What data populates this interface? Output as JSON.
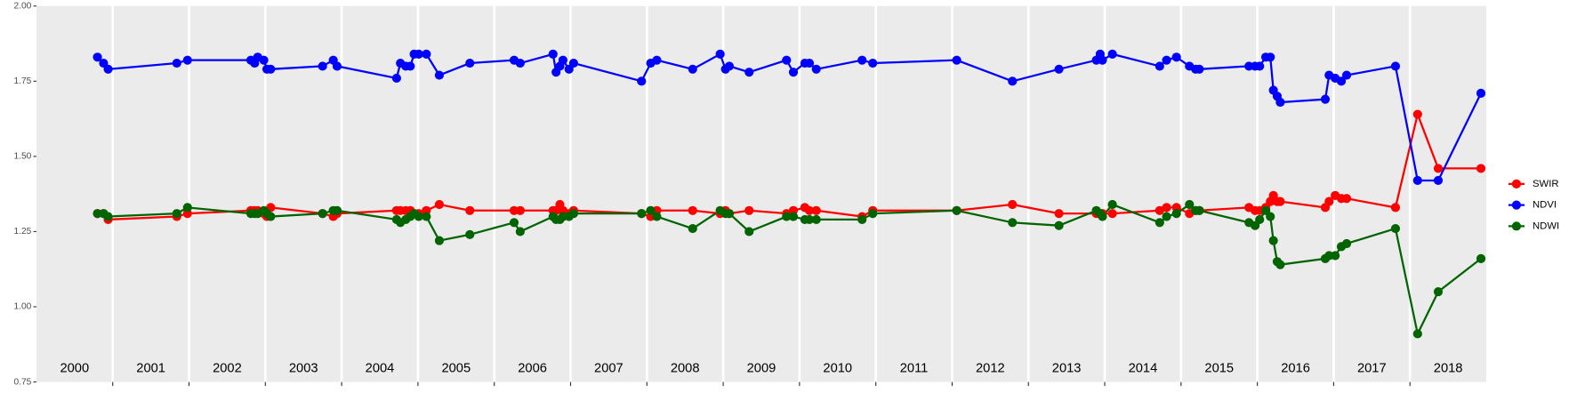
{
  "chart_data": {
    "type": "line",
    "x": [
      2000.8,
      2000.88,
      2000.94,
      2001.84,
      2001.98,
      2002.81,
      2002.86,
      2002.9,
      2002.98,
      2003.02,
      2003.07,
      2003.75,
      2003.89,
      2003.94,
      2004.72,
      2004.77,
      2004.84,
      2004.9,
      2004.95,
      2005.01,
      2005.11,
      2005.28,
      2005.68,
      2006.26,
      2006.34,
      2006.77,
      2006.81,
      2006.86,
      2006.9,
      2006.98,
      2007.04,
      2007.93,
      2008.05,
      2008.13,
      2008.6,
      2008.96,
      2009.03,
      2009.08,
      2009.34,
      2009.83,
      2009.92,
      2010.07,
      2010.13,
      2010.22,
      2010.82,
      2010.96,
      2012.06,
      2012.79,
      2013.4,
      2013.89,
      2013.94,
      2013.97,
      2014.1,
      2014.72,
      2014.81,
      2014.94,
      2015.11,
      2015.19,
      2015.24,
      2015.89,
      2015.97,
      2016.03,
      2016.11,
      2016.17,
      2016.21,
      2016.26,
      2016.3,
      2016.89,
      2016.94,
      2017.02,
      2017.1,
      2017.17,
      2017.81,
      2018.1,
      2018.37,
      2018.93
    ],
    "series": [
      {
        "name": "SWIR",
        "color": "#ff0000",
        "values": [
          1.31,
          1.31,
          1.29,
          1.3,
          1.31,
          1.32,
          1.32,
          1.32,
          1.31,
          1.3,
          1.33,
          1.31,
          1.3,
          1.31,
          1.32,
          1.32,
          1.32,
          1.32,
          1.31,
          1.31,
          1.32,
          1.34,
          1.32,
          1.32,
          1.32,
          1.32,
          1.32,
          1.34,
          1.32,
          1.31,
          1.32,
          1.31,
          1.3,
          1.32,
          1.32,
          1.31,
          1.32,
          1.31,
          1.32,
          1.31,
          1.32,
          1.33,
          1.32,
          1.32,
          1.3,
          1.32,
          1.32,
          1.34,
          1.31,
          1.31,
          1.31,
          1.31,
          1.31,
          1.32,
          1.33,
          1.33,
          1.31,
          1.32,
          1.32,
          1.33,
          1.32,
          1.32,
          1.33,
          1.35,
          1.37,
          1.35,
          1.35,
          1.33,
          1.35,
          1.37,
          1.36,
          1.36,
          1.33,
          1.64,
          1.46,
          1.46
        ]
      },
      {
        "name": "NDVI",
        "color": "#0000ff",
        "values": [
          1.83,
          1.81,
          1.79,
          1.81,
          1.82,
          1.82,
          1.81,
          1.83,
          1.82,
          1.79,
          1.79,
          1.8,
          1.82,
          1.8,
          1.76,
          1.81,
          1.8,
          1.8,
          1.84,
          1.84,
          1.84,
          1.77,
          1.81,
          1.82,
          1.81,
          1.84,
          1.78,
          1.8,
          1.82,
          1.79,
          1.81,
          1.75,
          1.81,
          1.82,
          1.79,
          1.84,
          1.79,
          1.8,
          1.78,
          1.82,
          1.78,
          1.81,
          1.81,
          1.79,
          1.82,
          1.81,
          1.82,
          1.75,
          1.79,
          1.82,
          1.84,
          1.82,
          1.84,
          1.8,
          1.82,
          1.83,
          1.8,
          1.79,
          1.79,
          1.8,
          1.8,
          1.8,
          1.83,
          1.83,
          1.72,
          1.7,
          1.68,
          1.69,
          1.77,
          1.76,
          1.75,
          1.77,
          1.8,
          1.42,
          1.42,
          1.71
        ]
      },
      {
        "name": "NDWI",
        "color": "#006400",
        "values": [
          1.31,
          1.31,
          1.3,
          1.31,
          1.33,
          1.31,
          1.31,
          1.31,
          1.32,
          1.31,
          1.3,
          1.31,
          1.32,
          1.32,
          1.29,
          1.28,
          1.29,
          1.3,
          1.31,
          1.3,
          1.3,
          1.22,
          1.24,
          1.28,
          1.25,
          1.3,
          1.29,
          1.29,
          1.3,
          1.3,
          1.31,
          1.31,
          1.32,
          1.3,
          1.26,
          1.32,
          1.31,
          1.31,
          1.25,
          1.3,
          1.3,
          1.29,
          1.29,
          1.29,
          1.29,
          1.31,
          1.32,
          1.28,
          1.27,
          1.32,
          1.31,
          1.3,
          1.34,
          1.28,
          1.3,
          1.31,
          1.34,
          1.32,
          1.32,
          1.28,
          1.27,
          1.29,
          1.32,
          1.3,
          1.22,
          1.15,
          1.14,
          1.16,
          1.17,
          1.17,
          1.2,
          1.21,
          1.26,
          0.91,
          1.05,
          1.16
        ]
      }
    ],
    "xlim": [
      2000,
      2019
    ],
    "xticks": [
      2001,
      2002,
      2003,
      2004,
      2005,
      2006,
      2007,
      2008,
      2009,
      2010,
      2011,
      2012,
      2013,
      2014,
      2015,
      2016,
      2017,
      2018
    ],
    "xlabels": [
      {
        "value": 2000.5,
        "label": "2000"
      },
      {
        "value": 2001.5,
        "label": "2001"
      },
      {
        "value": 2002.5,
        "label": "2002"
      },
      {
        "value": 2003.5,
        "label": "2003"
      },
      {
        "value": 2004.5,
        "label": "2004"
      },
      {
        "value": 2005.5,
        "label": "2005"
      },
      {
        "value": 2006.5,
        "label": "2006"
      },
      {
        "value": 2007.5,
        "label": "2007"
      },
      {
        "value": 2008.5,
        "label": "2008"
      },
      {
        "value": 2009.5,
        "label": "2009"
      },
      {
        "value": 2010.5,
        "label": "2010"
      },
      {
        "value": 2011.5,
        "label": "2011"
      },
      {
        "value": 2012.5,
        "label": "2012"
      },
      {
        "value": 2013.5,
        "label": "2013"
      },
      {
        "value": 2014.5,
        "label": "2014"
      },
      {
        "value": 2015.5,
        "label": "2015"
      },
      {
        "value": 2016.5,
        "label": "2016"
      },
      {
        "value": 2017.5,
        "label": "2017"
      },
      {
        "value": 2018.5,
        "label": "2018"
      }
    ],
    "ylim": [
      0.75,
      2.0
    ],
    "yticks": [
      0.75,
      {
        "value": 1,
        "label": "1.00"
      },
      1.25,
      {
        "value": 1.5,
        "label": "1.50"
      },
      1.75,
      {
        "value": 2,
        "label": "2.00"
      }
    ],
    "grid": "x",
    "legend": "right"
  }
}
